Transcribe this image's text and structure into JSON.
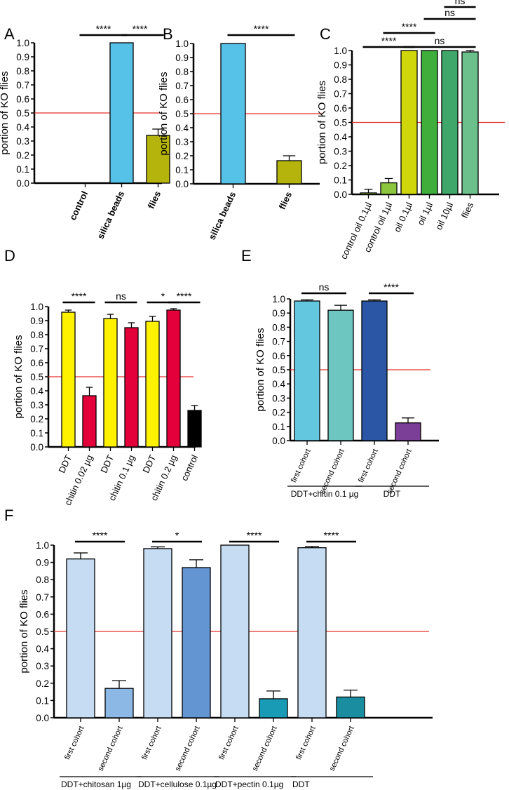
{
  "figure": {
    "y_label": "portion of KO flies",
    "threshold": 0.5
  },
  "colors": {
    "sky": "#56c2e8",
    "olive": "#b5b40c",
    "lime_yellow": "#cfd60a",
    "green1": "#8cc63f",
    "green2": "#3fae3a",
    "green3": "#40a76a",
    "green4": "#6cc08b",
    "yellow": "#fff200",
    "red": "#e4003b",
    "black": "#000000",
    "cyan_light": "#63c7e0",
    "teal_light": "#6ec6c0",
    "navy": "#2a56a5",
    "purple": "#7b3f98",
    "pale_blue": "#c6dcf2",
    "light_blue": "#8cb8e6",
    "mid_blue": "#6295d2",
    "teal": "#1a9bb5",
    "dark_teal": "#1a8da0",
    "threshold": "#e8322b"
  },
  "chart_data": [
    {
      "panel": "A",
      "type": "bar",
      "ylim": [
        0,
        1
      ],
      "ylabel": "portion of KO flies",
      "categories": [
        "control",
        "silica beads",
        "flies"
      ],
      "values": [
        0,
        1.0,
        0.34
      ],
      "errors": [
        0,
        0,
        0.045
      ],
      "colors": [
        "#ffffff",
        "#56c2e8",
        "#b5b40c"
      ],
      "label_style": "bold-rotated",
      "significance": [
        {
          "from": 0,
          "to": 1,
          "label": "****",
          "level": 0
        },
        {
          "from": 1,
          "to": 2,
          "label": "****",
          "level": 0
        }
      ]
    },
    {
      "panel": "B",
      "type": "bar",
      "ylim": [
        0,
        1
      ],
      "ylabel": "portion of KO flies",
      "categories": [
        "silica beads",
        "flies"
      ],
      "values": [
        1.0,
        0.165
      ],
      "errors": [
        0,
        0.035
      ],
      "colors": [
        "#56c2e8",
        "#b5b40c"
      ],
      "label_style": "bold-rotated",
      "significance": [
        {
          "from": 0,
          "to": 1,
          "label": "****",
          "level": 0
        }
      ]
    },
    {
      "panel": "C",
      "type": "bar",
      "ylim": [
        0,
        1
      ],
      "ylabel": "portion of KO flies",
      "categories": [
        "control oil 0.1µl",
        "control oil 1µl",
        "oil 0.1µl",
        "oil 1µl",
        "oil 10µl",
        "flies"
      ],
      "values": [
        0.01,
        0.08,
        1.0,
        1.0,
        1.0,
        0.99
      ],
      "errors": [
        0.025,
        0.03,
        0,
        0,
        0,
        0.01
      ],
      "colors": [
        "#8cc63f",
        "#8cc63f",
        "#cfd60a",
        "#3fae3a",
        "#40a76a",
        "#6cc08b"
      ],
      "label_style": "rotated",
      "significance": [
        {
          "from": 0,
          "to": 2,
          "label": "****",
          "level": 0
        },
        {
          "from": 2,
          "to": 5,
          "label": "ns",
          "level": 0
        },
        {
          "from": 1,
          "to": 3,
          "label": "****",
          "level": 1
        },
        {
          "from": 3,
          "to": 5,
          "label": "ns",
          "level": 2
        },
        {
          "from": 4,
          "to": 5,
          "label": "ns",
          "level": 3
        }
      ]
    },
    {
      "panel": "D",
      "type": "bar",
      "ylim": [
        0,
        1
      ],
      "ylabel": "portion of KO flies",
      "categories": [
        "DDT",
        "chitin 0.02 µg",
        "DDT",
        "chitin 0.1 µg",
        "DDT",
        "chitin 0.2 µg",
        "control"
      ],
      "values": [
        0.96,
        0.365,
        0.915,
        0.85,
        0.895,
        0.975,
        0.26
      ],
      "errors": [
        0.015,
        0.06,
        0.03,
        0.035,
        0.035,
        0.01,
        0.035
      ],
      "colors": [
        "#fff200",
        "#e4003b",
        "#fff200",
        "#e4003b",
        "#fff200",
        "#e4003b",
        "#000000"
      ],
      "label_style": "rotated",
      "significance": [
        {
          "from": 0,
          "to": 1,
          "label": "****",
          "level": 0
        },
        {
          "from": 2,
          "to": 3,
          "label": "ns",
          "level": 0
        },
        {
          "from": 4,
          "to": 5,
          "label": "*",
          "level": 0
        },
        {
          "from": 5,
          "to": 6,
          "label": "****",
          "level": 0
        }
      ]
    },
    {
      "panel": "E",
      "type": "bar",
      "ylim": [
        0,
        1
      ],
      "ylabel": "portion of KO flies",
      "categories": [
        "first cohort",
        "second cohort",
        "first cohort",
        "second cohort"
      ],
      "values": [
        0.985,
        0.92,
        0.985,
        0.125
      ],
      "errors": [
        0.008,
        0.035,
        0.008,
        0.035
      ],
      "colors": [
        "#63c7e0",
        "#6ec6c0",
        "#2a56a5",
        "#7b3f98"
      ],
      "label_style": "rotated",
      "groups": [
        {
          "label": "DDT+chitin 0.1 µg",
          "from": 0,
          "to": 1
        },
        {
          "label": "DDT",
          "from": 2,
          "to": 3
        }
      ],
      "significance": [
        {
          "from": 0,
          "to": 1,
          "label": "ns",
          "level": 0
        },
        {
          "from": 2,
          "to": 3,
          "label": "****",
          "level": 0
        }
      ]
    },
    {
      "panel": "F",
      "type": "bar",
      "ylim": [
        0,
        1
      ],
      "ylabel": "portion of KO flies",
      "categories": [
        "first cohort",
        "second cohort",
        "first cohort",
        "second cohort",
        "first cohort",
        "second cohort",
        "first cohort",
        "second cohort"
      ],
      "values": [
        0.92,
        0.17,
        0.98,
        0.87,
        1.0,
        0.11,
        0.985,
        0.12
      ],
      "errors": [
        0.035,
        0.045,
        0.01,
        0.045,
        0,
        0.045,
        0.008,
        0.04
      ],
      "colors": [
        "#c6dcf2",
        "#8cb8e6",
        "#c6dcf2",
        "#6295d2",
        "#c6dcf2",
        "#1a9bb5",
        "#c6dcf2",
        "#1a8da0"
      ],
      "label_style": "rotated",
      "groups": [
        {
          "label": "DDT+chitosan 1µg",
          "from": 0,
          "to": 1
        },
        {
          "label": "DDT+cellulose 0.1µg",
          "from": 2,
          "to": 3
        },
        {
          "label": "DDT+pectin 0.1µg",
          "from": 4,
          "to": 5
        },
        {
          "label": "DDT",
          "from": 6,
          "to": 7
        }
      ],
      "significance": [
        {
          "from": 0,
          "to": 1,
          "label": "****",
          "level": 0
        },
        {
          "from": 2,
          "to": 3,
          "label": "*",
          "level": 0
        },
        {
          "from": 4,
          "to": 5,
          "label": "****",
          "level": 0
        },
        {
          "from": 6,
          "to": 7,
          "label": "****",
          "level": 0
        }
      ]
    }
  ]
}
